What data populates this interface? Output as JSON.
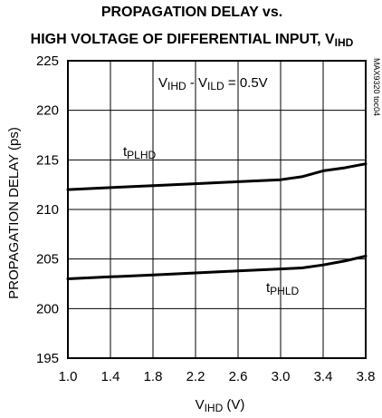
{
  "chart_data": {
    "type": "line",
    "title_line1": "PROPAGATION DELAY vs.",
    "title_line2_main": "HIGH VOLTAGE OF DIFFERENTIAL INPUT, V",
    "title_line2_sub": "IHD",
    "xlabel_main": "V",
    "xlabel_sub": "IHD",
    "xlabel_unit": " (V)",
    "ylabel": "PROPAGATION DELAY (ps)",
    "xlim": [
      1.0,
      3.8
    ],
    "ylim": [
      195,
      225
    ],
    "x_ticks": [
      "1.0",
      "1.4",
      "1.8",
      "2.2",
      "2.6",
      "3.0",
      "3.4",
      "3.8"
    ],
    "y_ticks": [
      "195",
      "200",
      "205",
      "210",
      "215",
      "220",
      "225"
    ],
    "grid": true,
    "annotation": {
      "v1": "V",
      "s1": "IHD",
      "mid": " - V",
      "s2": "ILD",
      "tail": " = 0.5V"
    },
    "side_code": "MAX9320 toc04",
    "series": [
      {
        "name_main": "t",
        "name_sub": "PLHD",
        "x": [
          1.0,
          1.4,
          1.8,
          2.2,
          2.6,
          3.0,
          3.2,
          3.4,
          3.6,
          3.8
        ],
        "y": [
          212.0,
          212.2,
          212.4,
          212.6,
          212.8,
          213.0,
          213.3,
          213.9,
          214.2,
          214.6
        ]
      },
      {
        "name_main": "t",
        "name_sub": "PHLD",
        "x": [
          1.0,
          1.4,
          1.8,
          2.2,
          2.6,
          3.0,
          3.2,
          3.4,
          3.6,
          3.8
        ],
        "y": [
          203.0,
          203.2,
          203.4,
          203.6,
          203.8,
          204.0,
          204.1,
          204.4,
          204.8,
          205.3
        ]
      }
    ]
  }
}
